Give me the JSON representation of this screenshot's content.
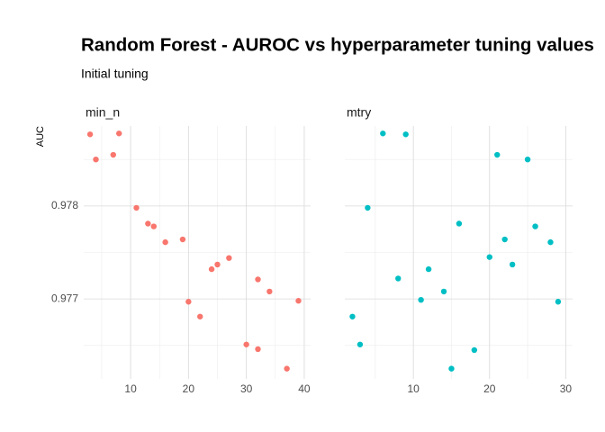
{
  "chart_data": {
    "type": "scatter",
    "title": "Random Forest - AUROC vs hyperparameter tuning values",
    "subtitle": "Initial tuning",
    "y_label": "AUC",
    "ylim": [
      0.97614,
      0.97886
    ],
    "yticks": [
      0.977,
      0.978
    ],
    "y_minor": [
      0.9765,
      0.9775,
      0.9785
    ],
    "grid": true,
    "panels": [
      {
        "name": "min_n",
        "color": "#F8766D",
        "xlim": [
          1.9,
          41.1
        ],
        "xticks": [
          10,
          20,
          30,
          40
        ],
        "x_minor": [
          5,
          15,
          25,
          35
        ],
        "x": [
          3,
          4,
          7,
          8,
          11,
          13,
          14,
          16,
          19,
          20,
          22,
          24,
          25,
          27,
          30,
          32,
          32,
          34,
          37,
          39
        ],
        "values": [
          0.97877,
          0.9785,
          0.97855,
          0.97878,
          0.97798,
          0.97781,
          0.97778,
          0.97761,
          0.97764,
          0.97697,
          0.97681,
          0.97732,
          0.97737,
          0.97744,
          0.97651,
          0.97721,
          0.97646,
          0.97708,
          0.97625,
          0.97698
        ]
      },
      {
        "name": "mtry",
        "color": "#00BFC4",
        "xlim": [
          1.0,
          30.9
        ],
        "xticks": [
          10,
          20,
          30
        ],
        "x_minor": [
          5,
          15,
          25
        ],
        "x": [
          2,
          3,
          4,
          6,
          9,
          8,
          11,
          12,
          14,
          15,
          16,
          18,
          20,
          21,
          22,
          23,
          25,
          26,
          28,
          29
        ],
        "values": [
          0.97681,
          0.97651,
          0.97798,
          0.97878,
          0.97877,
          0.97722,
          0.97699,
          0.97732,
          0.97708,
          0.97625,
          0.97781,
          0.97645,
          0.97745,
          0.97855,
          0.97764,
          0.97737,
          0.9785,
          0.97778,
          0.97761,
          0.97697
        ]
      }
    ]
  }
}
